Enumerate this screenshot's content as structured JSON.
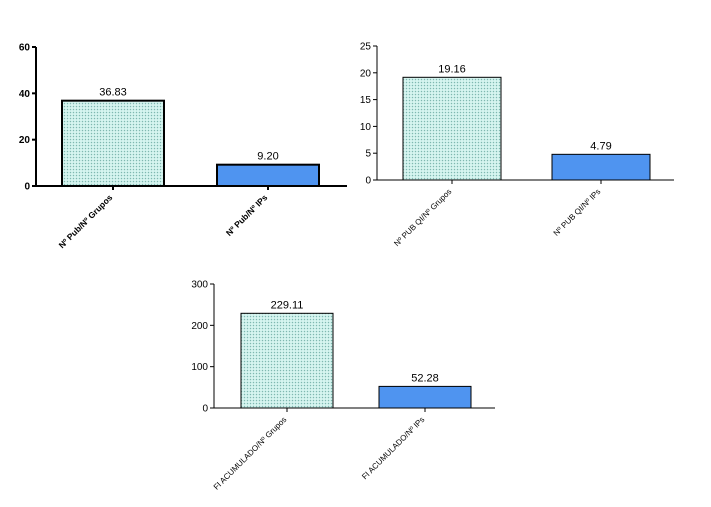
{
  "colors": {
    "dotted_fill": "#d6f5f0",
    "dot_color": "#7fb8b0",
    "blue_fill": "#4f94f0",
    "axis": "#000000"
  },
  "chart_data": [
    {
      "type": "bar",
      "categories": [
        "Nº Pub/Nº Grupos",
        "Nº Pub/Nº IPs"
      ],
      "values": [
        36.83,
        9.2
      ],
      "value_labels": [
        "36.83",
        "9.20"
      ],
      "ylim": [
        0,
        60
      ],
      "yticks": [
        "0",
        "20",
        "40",
        "60"
      ],
      "grid": false
    },
    {
      "type": "bar",
      "categories": [
        "Nº PUB QI/Nº Grupos",
        "Nº PUB QI/Nº IPs"
      ],
      "values": [
        19.16,
        4.79
      ],
      "value_labels": [
        "19.16",
        "4.79"
      ],
      "ylim": [
        0,
        25
      ],
      "yticks": [
        "0",
        "5",
        "10",
        "15",
        "20",
        "25"
      ],
      "grid": false
    },
    {
      "type": "bar",
      "categories": [
        "FI ACUMULADO/Nº Grupos",
        "FI ACUMULADO/Nº IPs"
      ],
      "values": [
        229.11,
        52.28
      ],
      "value_labels": [
        "229.11",
        "52.28"
      ],
      "ylim": [
        0,
        300
      ],
      "yticks": [
        "0",
        "100",
        "200",
        "300"
      ],
      "grid": false
    }
  ]
}
